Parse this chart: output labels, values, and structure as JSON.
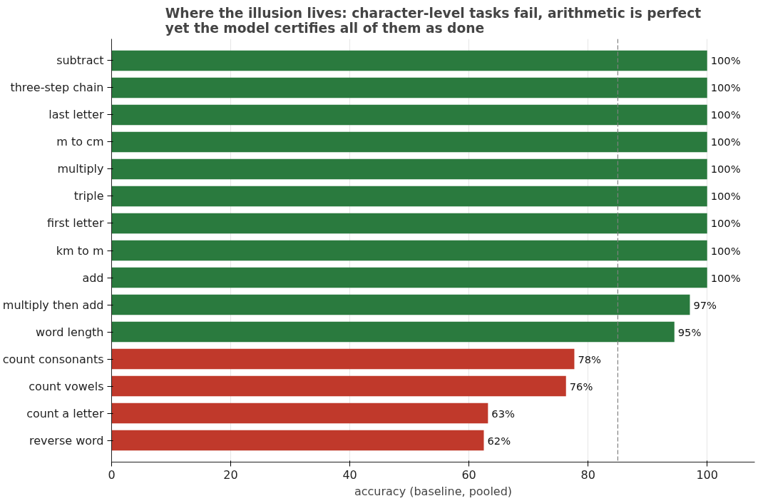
{
  "chart_data": {
    "type": "bar",
    "orientation": "horizontal",
    "title": "Where the illusion lives: character-level tasks fail, arithmetic is perfect\nyet the model certifies all of them as done",
    "xlabel": "accuracy (baseline, pooled)",
    "categories": [
      "subtract",
      "three-step chain",
      "last letter",
      "m to cm",
      "multiply",
      "triple",
      "first letter",
      "km to m",
      "add",
      "multiply then add",
      "word length",
      "count consonants",
      "count vowels",
      "count a letter",
      "reverse word"
    ],
    "values": [
      100,
      100,
      100,
      100,
      100,
      100,
      100,
      100,
      100,
      97.1,
      94.5,
      77.7,
      76.3,
      63.2,
      62.5
    ],
    "value_labels": [
      "100%",
      "100%",
      "100%",
      "100%",
      "100%",
      "100%",
      "100%",
      "100%",
      "100%",
      "97%",
      "95%",
      "78%",
      "76%",
      "63%",
      "62%"
    ],
    "colors": [
      "#2a7a3e",
      "#2a7a3e",
      "#2a7a3e",
      "#2a7a3e",
      "#2a7a3e",
      "#2a7a3e",
      "#2a7a3e",
      "#2a7a3e",
      "#2a7a3e",
      "#2a7a3e",
      "#2a7a3e",
      "#c0392b",
      "#c0392b",
      "#c0392b",
      "#c0392b"
    ],
    "xlim": [
      0,
      108
    ],
    "xticks": [
      0,
      20,
      40,
      60,
      80,
      100
    ],
    "grid": "x",
    "ref_lines": [
      {
        "axis": "x",
        "value": 85,
        "color": "#808080",
        "line_style": "dashed"
      }
    ]
  }
}
